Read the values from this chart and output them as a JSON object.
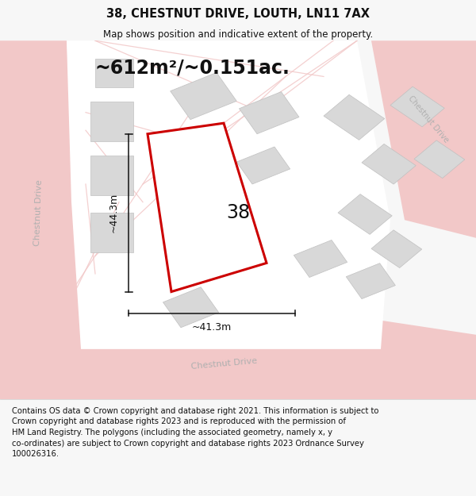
{
  "title": "38, CHESTNUT DRIVE, LOUTH, LN11 7AX",
  "subtitle": "Map shows position and indicative extent of the property.",
  "area_text": "~612m²/~0.151ac.",
  "label_38": "38",
  "dim_height": "~44.3m",
  "dim_width": "~41.3m",
  "footer": "Contains OS data © Crown copyright and database right 2021. This information is subject to Crown copyright and database rights 2023 and is reproduced with the permission of HM Land Registry. The polygons (including the associated geometry, namely x, y co-ordinates) are subject to Crown copyright and database rights 2023 Ordnance Survey 100026316.",
  "bg_color": "#f7f7f7",
  "map_bg": "#ffffff",
  "road_color": "#f2c8c8",
  "building_fill": "#d8d8d8",
  "building_edge": "#c0c0c0",
  "plot_fill": "#ffffff",
  "plot_edge": "#cc0000",
  "plot_lw": 2.2,
  "road_label_color": "#b0b0b0",
  "dim_color": "#111111",
  "title_fontsize": 10.5,
  "subtitle_fontsize": 8.5,
  "area_fontsize": 17,
  "label_fontsize": 17,
  "dim_fontsize": 9,
  "footer_fontsize": 7.2,
  "road_label_fontsize": 8
}
